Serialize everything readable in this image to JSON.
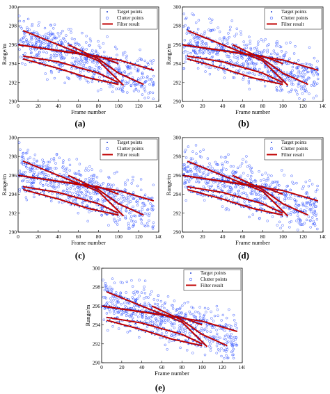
{
  "colors": {
    "target": "#1f3fcf",
    "clutter": "#3b5bff",
    "filter": "#c00000",
    "axis": "#000000"
  },
  "chart_data": [
    {
      "type": "scatter",
      "panel_label": "(a)",
      "xlabel": "Frame number",
      "ylabel": "Range/m",
      "xlim": [
        0,
        140
      ],
      "ylim": [
        290,
        300
      ],
      "xticks": [
        "0",
        "20",
        "40",
        "60",
        "80",
        "100",
        "120",
        "140"
      ],
      "yticks": [
        "290",
        "292",
        "294",
        "296",
        "298",
        "300"
      ],
      "legend": {
        "placement": "top-right",
        "entries": [
          "Target points",
          "Clutter points",
          "Filter result"
        ]
      },
      "grid": false
    },
    {
      "type": "scatter",
      "panel_label": "(b)",
      "xlabel": "Frame number",
      "ylabel": "Range/m",
      "xlim": [
        0,
        140
      ],
      "ylim": [
        290,
        300
      ],
      "xticks": [
        "0",
        "20",
        "40",
        "60",
        "80",
        "100",
        "120",
        "140"
      ],
      "yticks": [
        "290",
        "292",
        "294",
        "296",
        "298",
        "300"
      ],
      "legend": {
        "placement": "top-right",
        "entries": [
          "Target points",
          "Clutter points",
          "Filter result"
        ]
      },
      "grid": false
    },
    {
      "type": "scatter",
      "panel_label": "(c)",
      "xlabel": "Frame number",
      "ylabel": "Range/m",
      "xlim": [
        0,
        140
      ],
      "ylim": [
        290,
        300
      ],
      "xticks": [
        "0",
        "20",
        "40",
        "60",
        "80",
        "100",
        "120",
        "140"
      ],
      "yticks": [
        "290",
        "292",
        "294",
        "296",
        "298",
        "300"
      ],
      "legend": {
        "placement": "top-right",
        "entries": [
          "Target points",
          "Clutter points",
          "Filter result"
        ]
      },
      "grid": false
    },
    {
      "type": "scatter",
      "panel_label": "(d)",
      "xlabel": "Frame number",
      "ylabel": "Range/m",
      "xlim": [
        0,
        140
      ],
      "ylim": [
        290,
        300
      ],
      "xticks": [
        "0",
        "20",
        "40",
        "60",
        "80",
        "100",
        "120",
        "140"
      ],
      "yticks": [
        "290",
        "292",
        "294",
        "296",
        "298",
        "300"
      ],
      "legend": {
        "placement": "top-right",
        "entries": [
          "Target points",
          "Clutter points",
          "Filter result"
        ]
      },
      "grid": false
    },
    {
      "type": "scatter",
      "panel_label": "(e)",
      "xlabel": "Frame number",
      "ylabel": "Range/m",
      "xlim": [
        0,
        140
      ],
      "ylim": [
        290,
        300
      ],
      "xticks": [
        "0",
        "20",
        "40",
        "60",
        "80",
        "100",
        "120",
        "140"
      ],
      "yticks": [
        "290",
        "292",
        "294",
        "296",
        "298",
        "300"
      ],
      "legend": {
        "placement": "top-right",
        "entries": [
          "Target points",
          "Clutter points",
          "Filter result"
        ]
      },
      "grid": false
    }
  ],
  "tracks": [
    {
      "x": [
        0,
        40,
        80,
        100
      ],
      "y": [
        296.0,
        295.4,
        294.8,
        294.0
      ]
    },
    {
      "x": [
        0,
        50,
        100,
        135
      ],
      "y": [
        296.0,
        295.2,
        294.4,
        293.3
      ]
    },
    {
      "x": [
        5,
        40,
        80,
        105
      ],
      "y": [
        297.5,
        296.0,
        294.3,
        291.7
      ]
    },
    {
      "x": [
        5,
        40,
        80,
        100
      ],
      "y": [
        294.8,
        294.2,
        293.0,
        292.0
      ]
    },
    {
      "x": [
        50,
        80,
        100,
        125
      ],
      "y": [
        296.0,
        294.5,
        293.0,
        291.8
      ]
    },
    {
      "x": [
        5,
        40,
        70,
        100
      ],
      "y": [
        294.5,
        293.5,
        292.5,
        291.8
      ]
    }
  ]
}
